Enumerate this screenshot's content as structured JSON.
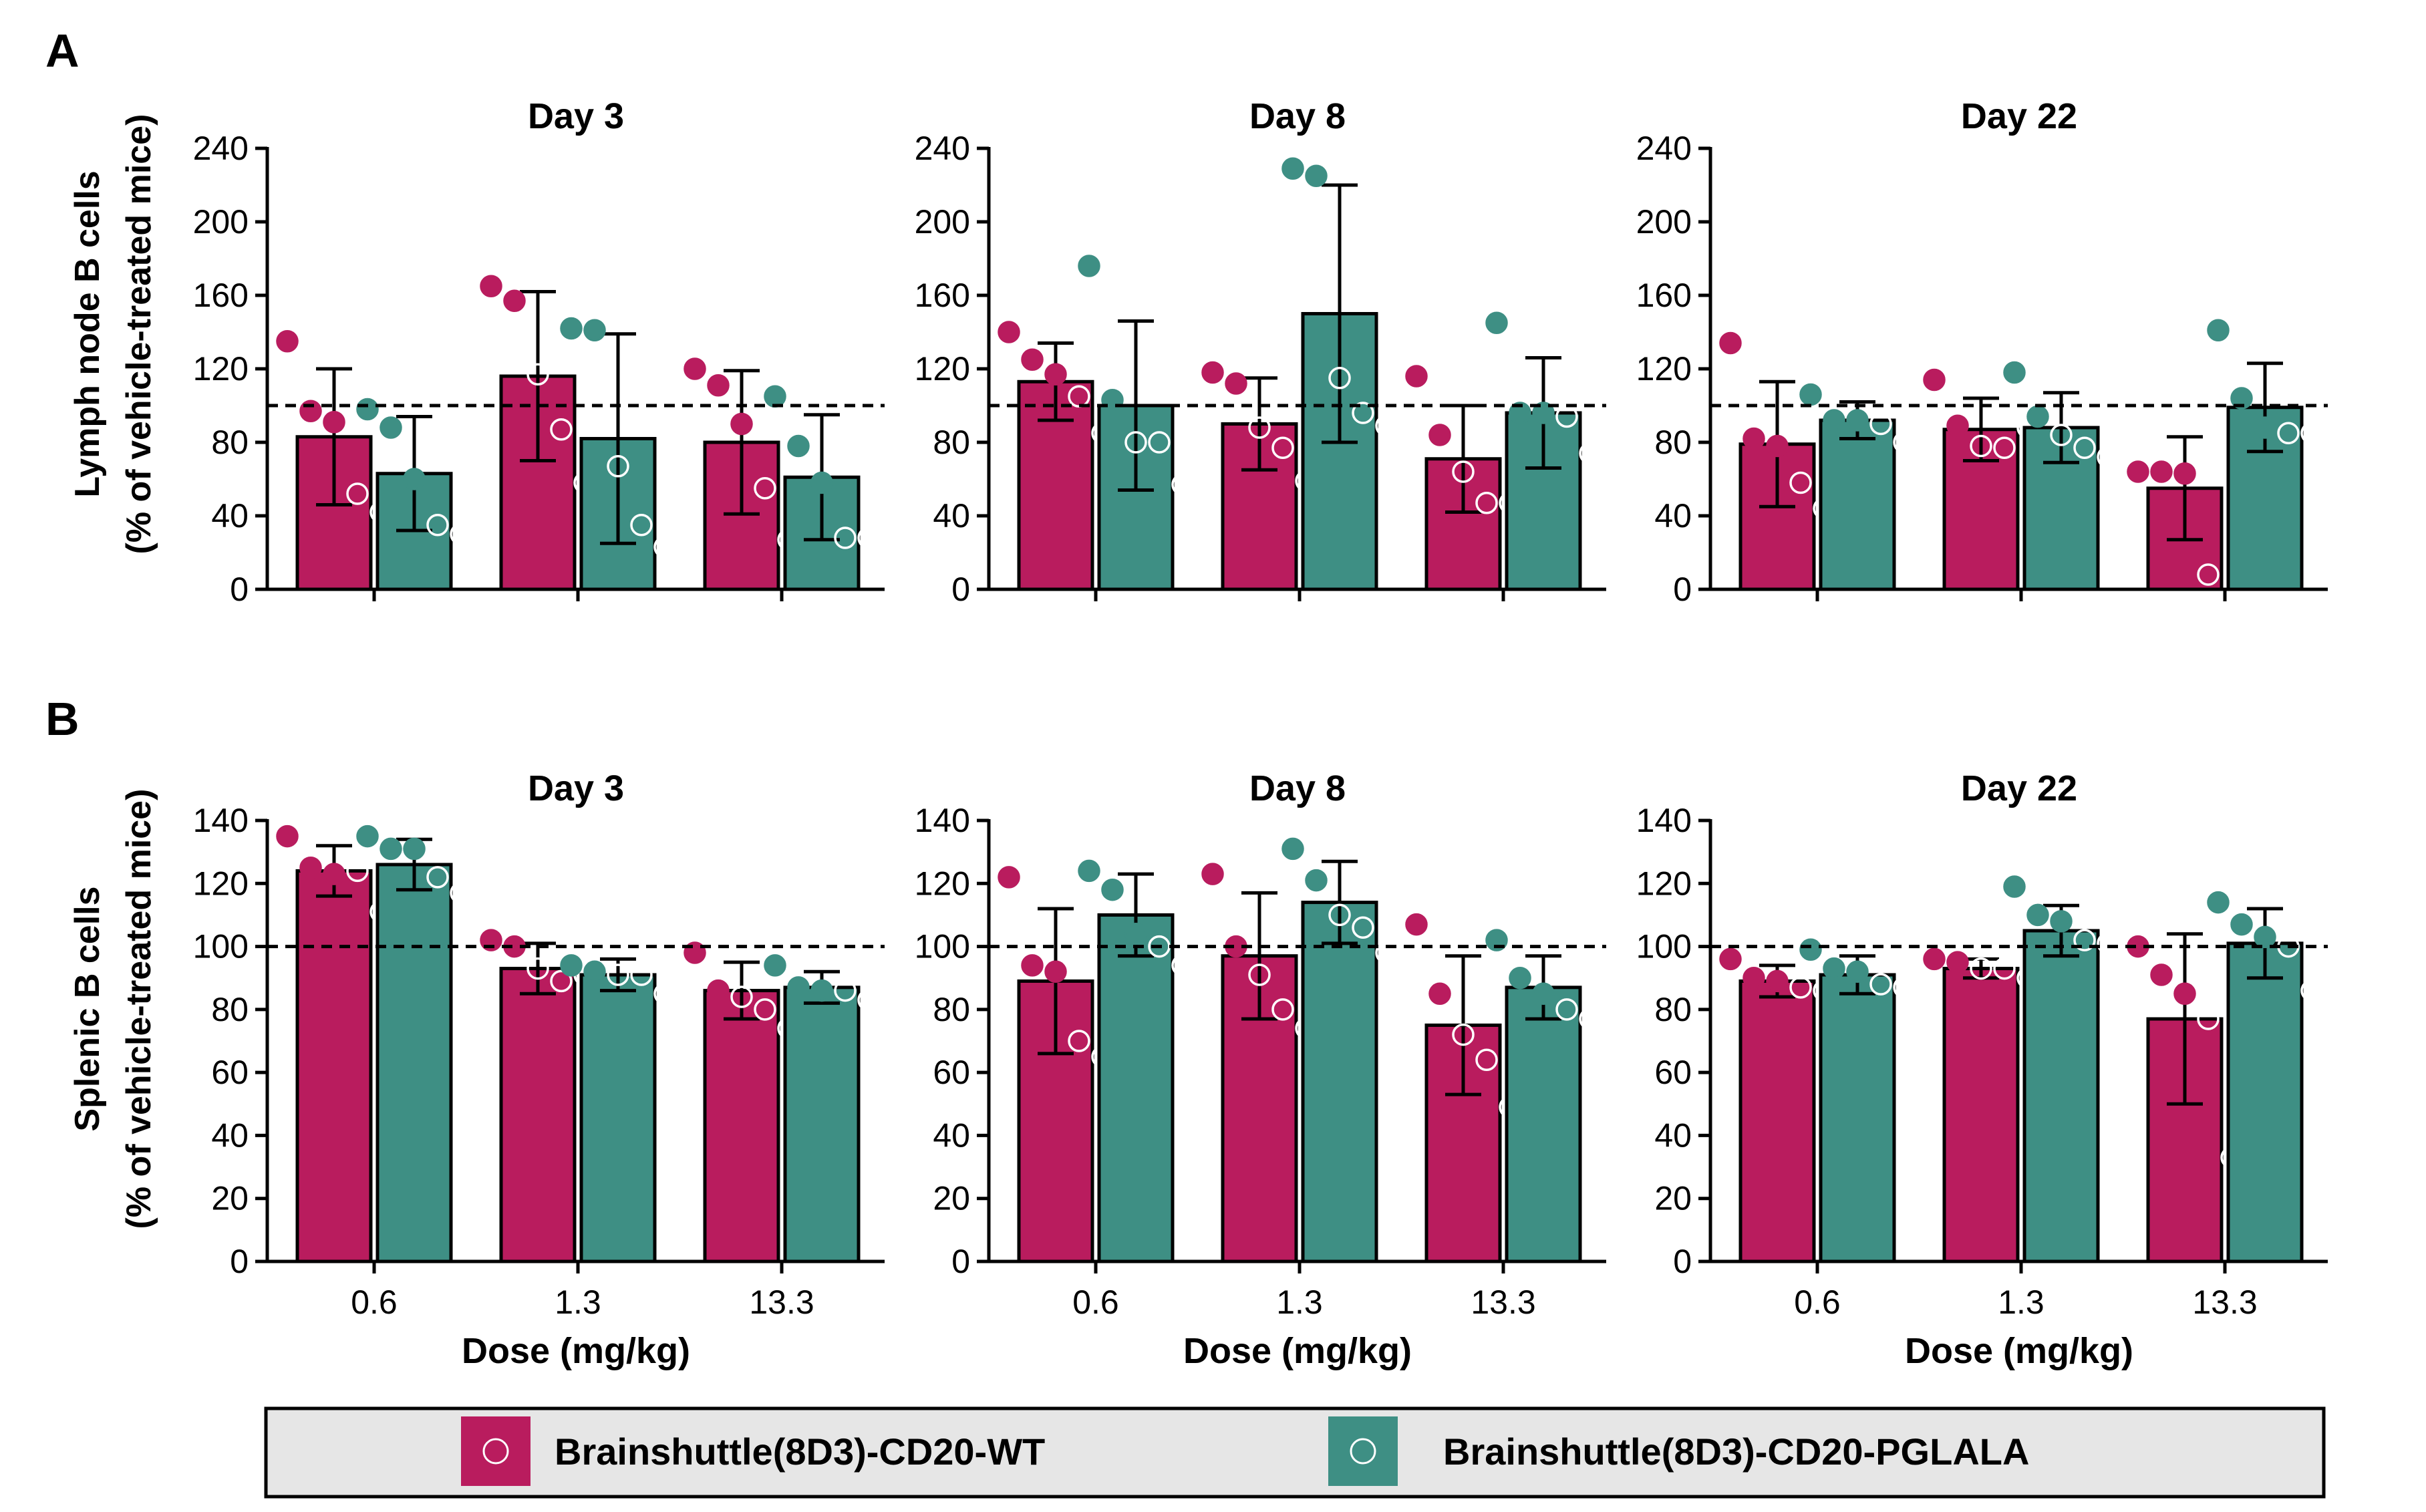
{
  "panel_labels": [
    "A",
    "B"
  ],
  "legend": [
    {
      "label": "Brainshuttle(8D3)-CD20-WT",
      "color": "#b91c5e"
    },
    {
      "label": "Brainshuttle(8D3)-CD20-PGLALA",
      "color": "#3e8f84"
    }
  ],
  "colors": {
    "wt": "#b91c5e",
    "pglala": "#3e8f84",
    "legend_bg": "#e6e6e6"
  },
  "rows": [
    {
      "panel": "A",
      "ylabel_line1": "Lymph node B cells",
      "ylabel_line2": "(% of vehicle-treated mice)"
    },
    {
      "panel": "B",
      "ylabel_line1": "Splenic B cells",
      "ylabel_line2": "(% of vehicle-treated mice)"
    }
  ],
  "xlabel": "Dose (mg/kg)",
  "chart_data": [
    {
      "panel": "A",
      "type": "bar",
      "title": "Day 3",
      "categories": [
        "0.6",
        "1.3",
        "13.3"
      ],
      "ylim": [
        0,
        240
      ],
      "yticks": [
        0,
        40,
        80,
        120,
        160,
        200,
        240
      ],
      "reference_line": 100,
      "series": [
        {
          "name": "Brainshuttle(8D3)-CD20-WT",
          "values": [
            83,
            116,
            80
          ],
          "error": [
            37,
            46,
            39
          ],
          "points": [
            [
              135,
              97,
              91,
              52,
              42
            ],
            [
              165,
              157,
              117,
              87,
              58
            ],
            [
              120,
              111,
              90,
              55,
              27
            ]
          ],
          "filled": [
            [
              true,
              true,
              true,
              false,
              false
            ],
            [
              true,
              true,
              false,
              false,
              false
            ],
            [
              true,
              true,
              true,
              false,
              false
            ]
          ]
        },
        {
          "name": "Brainshuttle(8D3)-CD20-PGLALA",
          "values": [
            63,
            82,
            61
          ],
          "error": [
            31,
            57,
            34
          ],
          "points": [
            [
              98,
              88,
              60,
              35,
              30
            ],
            [
              142,
              141,
              67,
              35,
              23
            ],
            [
              105,
              78,
              58,
              28,
              28
            ]
          ],
          "filled": [
            [
              true,
              true,
              true,
              false,
              false
            ],
            [
              true,
              true,
              false,
              false,
              false
            ],
            [
              true,
              true,
              true,
              false,
              false
            ]
          ]
        }
      ]
    },
    {
      "panel": "A",
      "type": "bar",
      "title": "Day 8",
      "categories": [
        "0.6",
        "1.3",
        "13.3"
      ],
      "ylim": [
        0,
        240
      ],
      "yticks": [
        0,
        40,
        80,
        120,
        160,
        200,
        240
      ],
      "reference_line": 100,
      "series": [
        {
          "name": "Brainshuttle(8D3)-CD20-WT",
          "values": [
            113,
            90,
            71
          ],
          "error": [
            21,
            25,
            29
          ],
          "points": [
            [
              140,
              125,
              117,
              105,
              85
            ],
            [
              118,
              112,
              88,
              77,
              59
            ],
            [
              116,
              84,
              64,
              47,
              47
            ]
          ],
          "filled": [
            [
              true,
              true,
              true,
              false,
              false
            ],
            [
              true,
              true,
              false,
              false,
              false
            ],
            [
              true,
              true,
              false,
              false,
              false
            ]
          ]
        },
        {
          "name": "Brainshuttle(8D3)-CD20-PGLALA",
          "values": [
            100,
            150,
            96
          ],
          "error": [
            46,
            70,
            30
          ],
          "points": [
            [
              176,
              103,
              80,
              80,
              57
            ],
            [
              229,
              225,
              115,
              96,
              89
            ],
            [
              145,
              96,
              96,
              94,
              74
            ]
          ],
          "filled": [
            [
              true,
              true,
              false,
              false,
              false
            ],
            [
              true,
              true,
              false,
              false,
              false
            ],
            [
              true,
              true,
              true,
              false,
              false
            ]
          ]
        }
      ]
    },
    {
      "panel": "A",
      "type": "bar",
      "title": "Day 22",
      "categories": [
        "0.6",
        "1.3",
        "13.3"
      ],
      "ylim": [
        0,
        240
      ],
      "yticks": [
        0,
        40,
        80,
        120,
        160,
        200,
        240
      ],
      "reference_line": 100,
      "series": [
        {
          "name": "Brainshuttle(8D3)-CD20-WT",
          "values": [
            79,
            87,
            55
          ],
          "error": [
            34,
            17,
            28
          ],
          "points": [
            [
              134,
              82,
              78,
              58,
              44
            ],
            [
              114,
              89,
              78,
              77,
              88
            ],
            [
              64,
              64,
              63,
              8,
              81
            ]
          ],
          "filled": [
            [
              true,
              true,
              true,
              false,
              false
            ],
            [
              true,
              true,
              false,
              false,
              false
            ],
            [
              true,
              true,
              true,
              false,
              false
            ]
          ]
        },
        {
          "name": "Brainshuttle(8D3)-CD20-PGLALA",
          "values": [
            92,
            88,
            99
          ],
          "error": [
            10,
            19,
            24
          ],
          "points": [
            [
              106,
              92,
              92,
              90,
              80
            ],
            [
              118,
              94,
              84,
              77,
              72
            ],
            [
              141,
              104,
              88,
              85,
              85
            ]
          ],
          "filled": [
            [
              true,
              true,
              true,
              false,
              false
            ],
            [
              true,
              true,
              false,
              false,
              false
            ],
            [
              true,
              true,
              true,
              false,
              false
            ]
          ]
        }
      ]
    },
    {
      "panel": "B",
      "type": "bar",
      "title": "Day 3",
      "categories": [
        "0.6",
        "1.3",
        "13.3"
      ],
      "ylim": [
        0,
        140
      ],
      "yticks": [
        0,
        20,
        40,
        60,
        80,
        100,
        120,
        140
      ],
      "reference_line": 100,
      "series": [
        {
          "name": "Brainshuttle(8D3)-CD20-WT",
          "values": [
            124,
            93,
            86
          ],
          "error": [
            8,
            8,
            9
          ],
          "points": [
            [
              135,
              125,
              123,
              124,
              111
            ],
            [
              102,
              100,
              93,
              89,
              91
            ],
            [
              98,
              86,
              84,
              80,
              74
            ]
          ],
          "filled": [
            [
              true,
              true,
              true,
              false,
              false
            ],
            [
              true,
              true,
              false,
              false,
              false
            ],
            [
              true,
              true,
              false,
              false,
              false
            ]
          ]
        },
        {
          "name": "Brainshuttle(8D3)-CD20-PGLALA",
          "values": [
            126,
            91,
            87
          ],
          "error": [
            8,
            5,
            5
          ],
          "points": [
            [
              135,
              131,
              131,
              122,
              117
            ],
            [
              94,
              92,
              91,
              91,
              85
            ],
            [
              94,
              87,
              86,
              86,
              83
            ]
          ],
          "filled": [
            [
              true,
              true,
              true,
              false,
              false
            ],
            [
              true,
              true,
              false,
              false,
              false
            ],
            [
              true,
              true,
              true,
              false,
              false
            ]
          ]
        }
      ]
    },
    {
      "panel": "B",
      "type": "bar",
      "title": "Day 8",
      "categories": [
        "0.6",
        "1.3",
        "13.3"
      ],
      "ylim": [
        0,
        140
      ],
      "yticks": [
        0,
        20,
        40,
        60,
        80,
        100,
        120,
        140
      ],
      "reference_line": 100,
      "series": [
        {
          "name": "Brainshuttle(8D3)-CD20-WT",
          "values": [
            89,
            97,
            75
          ],
          "error": [
            23,
            20,
            22
          ],
          "points": [
            [
              122,
              94,
              92,
              70,
              65
            ],
            [
              123,
              100,
              91,
              80,
              74
            ],
            [
              107,
              85,
              72,
              64,
              49
            ]
          ],
          "filled": [
            [
              true,
              true,
              true,
              false,
              false
            ],
            [
              true,
              true,
              false,
              false,
              false
            ],
            [
              true,
              true,
              false,
              false,
              false
            ]
          ]
        },
        {
          "name": "Brainshuttle(8D3)-CD20-PGLALA",
          "values": [
            110,
            114,
            87
          ],
          "error": [
            13,
            13,
            10
          ],
          "points": [
            [
              124,
              118,
              104,
              100,
              94
            ],
            [
              131,
              121,
              110,
              106,
              98
            ],
            [
              102,
              90,
              85,
              80,
              77
            ]
          ],
          "filled": [
            [
              true,
              true,
              true,
              false,
              false
            ],
            [
              true,
              true,
              false,
              false,
              false
            ],
            [
              true,
              true,
              true,
              false,
              false
            ]
          ]
        }
      ]
    },
    {
      "panel": "B",
      "type": "bar",
      "title": "Day 22",
      "categories": [
        "0.6",
        "1.3",
        "13.3"
      ],
      "ylim": [
        0,
        140
      ],
      "yticks": [
        0,
        20,
        40,
        60,
        80,
        100,
        120,
        140
      ],
      "reference_line": 100,
      "series": [
        {
          "name": "Brainshuttle(8D3)-CD20-WT",
          "values": [
            89,
            93,
            77
          ],
          "error": [
            5,
            3,
            27
          ],
          "points": [
            [
              96,
              90,
              89,
              87,
              86
            ],
            [
              96,
              95,
              93,
              93,
              90
            ],
            [
              100,
              91,
              85,
              77,
              33
            ]
          ],
          "filled": [
            [
              true,
              true,
              true,
              false,
              false
            ],
            [
              true,
              true,
              false,
              false,
              false
            ],
            [
              true,
              true,
              true,
              false,
              false
            ]
          ]
        },
        {
          "name": "Brainshuttle(8D3)-CD20-PGLALA",
          "values": [
            91,
            105,
            101
          ],
          "error": [
            6,
            8,
            11
          ],
          "points": [
            [
              99,
              93,
              92,
              88,
              87
            ],
            [
              119,
              110,
              108,
              102,
              101
            ],
            [
              114,
              107,
              103,
              100,
              86
            ]
          ],
          "filled": [
            [
              true,
              true,
              true,
              false,
              false
            ],
            [
              true,
              true,
              true,
              false,
              false
            ],
            [
              true,
              true,
              true,
              false,
              false
            ]
          ]
        }
      ]
    }
  ]
}
